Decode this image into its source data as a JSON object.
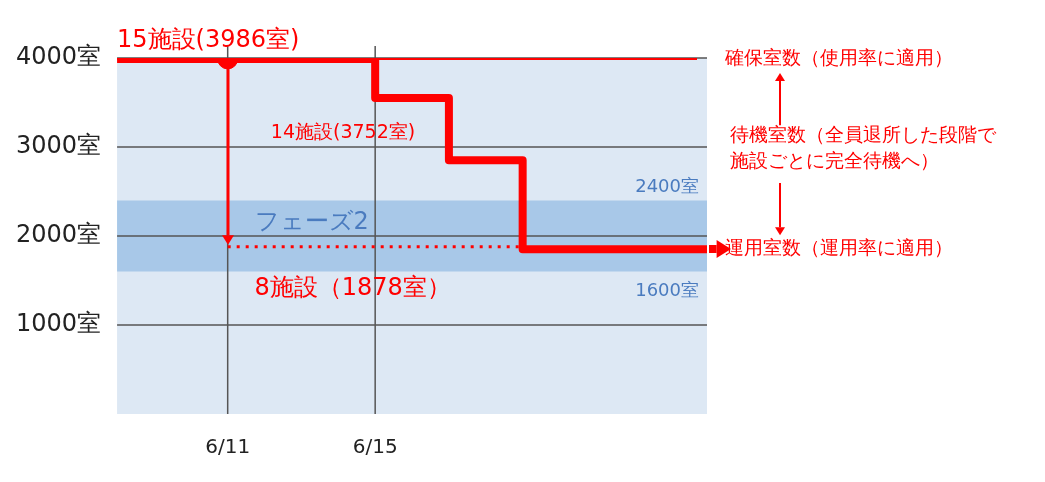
{
  "chart_data": {
    "type": "step",
    "xlim": [
      "--06-08",
      "--06-24"
    ],
    "xticks": [
      {
        "value": "--06-11",
        "label": "6/11"
      },
      {
        "value": "--06-15",
        "label": "6/15"
      }
    ],
    "ylim": [
      0,
      4000
    ],
    "yticks": [
      {
        "value": 1000,
        "label": "1000室"
      },
      {
        "value": 2000,
        "label": "2000室"
      },
      {
        "value": 3000,
        "label": "3000室"
      },
      {
        "value": 4000,
        "label": "4000室"
      }
    ],
    "grid": true,
    "legend": "right",
    "series": [
      {
        "name": "運用室数（運用率に適用）",
        "color": "#ff0000",
        "x": [
          "--06-08",
          "--06-15",
          "--06-17",
          "--06-19",
          "--06-24"
        ],
        "values": [
          3990,
          3550,
          2850,
          1850,
          1850
        ]
      },
      {
        "type": "line",
        "line_style": "dotted",
        "color": "#ff0000",
        "x": [
          "--06-11",
          "--06-19"
        ],
        "values": [
          1880,
          1880
        ]
      },
      {
        "type": "scatter",
        "marker": "circle",
        "color": "#ff0000",
        "x": [
          "--06-11"
        ],
        "values": [
          3990
        ]
      }
    ],
    "ref_lines": [
      {
        "axis": "y",
        "value": 3990,
        "label": "確保室数（使用率に適用）",
        "color": "#ff0000"
      }
    ],
    "bands": [
      {
        "axis": "y",
        "from": 1600,
        "to": 2400,
        "label": "フェーズ2",
        "color": "#a8c8e8"
      }
    ],
    "annotations": [
      {
        "text": "15施設(3986室)",
        "x": "--06-08",
        "y": 3990
      },
      {
        "text": "14施設(3752室)",
        "x": "--06-15",
        "y": 3550
      },
      {
        "text": "8施設（1878室）",
        "x": "--06-11",
        "y": 1880
      },
      {
        "text": "2400室",
        "x": "--06-24",
        "y": 2400
      },
      {
        "text": "1600室",
        "x": "--06-24",
        "y": 1600
      },
      "待機室数（全員退所した段階で施設ごとに完全待機へ）"
    ]
  }
}
